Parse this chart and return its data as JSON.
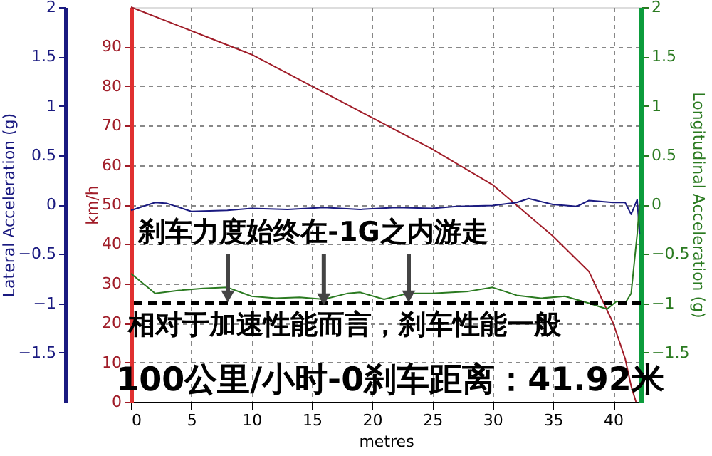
{
  "chart_data": {
    "type": "line",
    "xlabel": "metres",
    "ylabel": "km/h",
    "y2label": "Longitudinal Acceleration (g)",
    "y3label": "Lateral Acceleration (g)",
    "xlim": [
      0,
      42.3
    ],
    "xticks": [
      0,
      5,
      10,
      15,
      20,
      25,
      30,
      35,
      40
    ],
    "ylim": [
      0,
      100
    ],
    "yticks": [
      0,
      10,
      20,
      30,
      40,
      50,
      60,
      70,
      80,
      90
    ],
    "y2lim": [
      -2,
      2
    ],
    "y2ticks": [
      -1.5,
      -1,
      -0.5,
      0,
      0.5,
      1,
      1.5,
      2
    ],
    "y3lim": [
      -2,
      2
    ],
    "y3ticks": [
      -1.5,
      -1,
      -0.5,
      0,
      0.5,
      1,
      1.5,
      2
    ],
    "grid": true,
    "series": [
      {
        "color": "#a01c28",
        "x": [
          0,
          5,
          10,
          15,
          20,
          25,
          30,
          35,
          38,
          40,
          41,
          41.5,
          41.9
        ],
        "values": [
          100,
          94,
          88,
          80,
          72,
          64,
          55,
          42,
          33,
          20,
          11,
          4,
          0
        ]
      },
      {
        "color": "#1a1a80",
        "axis": "y3",
        "x": [
          0,
          2,
          3,
          5,
          8,
          10,
          13,
          16,
          19,
          22,
          25,
          27,
          30,
          32,
          33,
          35,
          37,
          38,
          40,
          41,
          41.5,
          42,
          42.2
        ],
        "values": [
          -0.06,
          0.02,
          0.01,
          -0.07,
          -0.06,
          -0.04,
          -0.05,
          -0.03,
          -0.05,
          -0.03,
          -0.04,
          -0.02,
          -0.01,
          0.02,
          0.06,
          0,
          -0.02,
          0.04,
          0.02,
          0.02,
          -0.1,
          0.05,
          -0.3
        ]
      },
      {
        "color": "#2a7a20",
        "axis": "y2",
        "x": [
          0,
          2,
          4,
          6,
          8,
          10,
          12,
          14,
          16,
          18,
          19,
          21,
          23,
          25,
          28,
          30,
          32,
          34,
          36,
          38,
          39.5,
          40.3,
          41,
          41.5,
          42,
          42.2
        ],
        "values": [
          -0.7,
          -0.9,
          -0.87,
          -0.85,
          -0.84,
          -0.93,
          -0.95,
          -0.94,
          -0.96,
          -0.9,
          -0.89,
          -0.96,
          -0.9,
          -0.9,
          -0.88,
          -0.84,
          -0.92,
          -0.95,
          -0.93,
          -1.0,
          -1.06,
          -0.98,
          -1.0,
          -0.9,
          -0.3,
          0
        ]
      }
    ],
    "ref_lines": [
      {
        "axis": "y2",
        "value": -1,
        "color": "#000000",
        "line_style": "dashed"
      }
    ],
    "annotations": [
      {
        "text": "刹车力度始终在-1G之内游走",
        "x": 16,
        "y": 26
      },
      "相对于加速性能而言，刹车性能一般",
      "100公里/小时-0刹车距离：41.92米"
    ]
  }
}
